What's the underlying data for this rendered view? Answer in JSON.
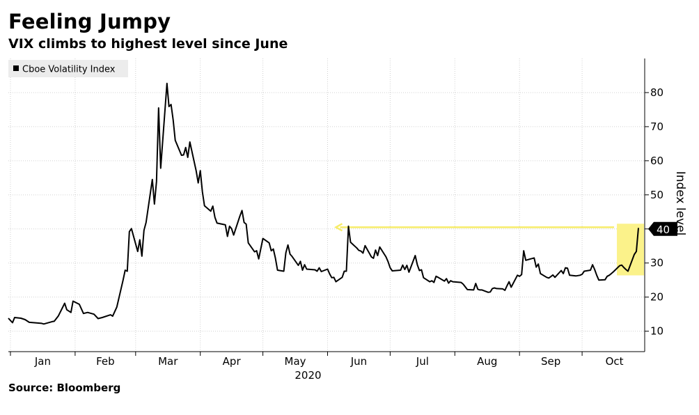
{
  "header": {
    "title": "Feeling Jumpy",
    "subtitle": "VIX climbs to highest level since June"
  },
  "footer": {
    "source": "Source: Bloomberg"
  },
  "chart_data": {
    "type": "line",
    "ylabel": "Index level",
    "year_label": "2020",
    "ylim": [
      4,
      90
    ],
    "yticks": [
      10,
      20,
      30,
      40,
      50,
      60,
      70,
      80
    ],
    "month_labels": [
      "Jan",
      "Feb",
      "Mar",
      "Apr",
      "May",
      "Jun",
      "Jul",
      "Aug",
      "Sep",
      "Oct"
    ],
    "grid": true,
    "legend": {
      "position": "top-left",
      "entries": [
        "Cboe Volatility Index"
      ]
    },
    "callout_value": "40",
    "highlight_start": "2020-10-19",
    "arrow_start_date": "2020-10-19",
    "arrow_end_date": "2020-06-01",
    "arrow_level": 40.5,
    "colors": {
      "line": "#000000",
      "highlight": "#fbf28a",
      "arrow": "#f7ec69",
      "grid": "#d0d0d0"
    },
    "series": [
      {
        "name": "Cboe Volatility Index",
        "points": [
          [
            "2019-12-31",
            13.8
          ],
          [
            "2020-01-02",
            12.5
          ],
          [
            "2020-01-03",
            14.0
          ],
          [
            "2020-01-06",
            13.8
          ],
          [
            "2020-01-08",
            13.4
          ],
          [
            "2020-01-10",
            12.6
          ],
          [
            "2020-01-14",
            12.4
          ],
          [
            "2020-01-16",
            12.3
          ],
          [
            "2020-01-17",
            12.1
          ],
          [
            "2020-01-21",
            12.8
          ],
          [
            "2020-01-22",
            12.9
          ],
          [
            "2020-01-24",
            14.5
          ],
          [
            "2020-01-27",
            18.2
          ],
          [
            "2020-01-28",
            16.3
          ],
          [
            "2020-01-30",
            15.5
          ],
          [
            "2020-01-31",
            18.8
          ],
          [
            "2020-02-03",
            17.9
          ],
          [
            "2020-02-05",
            15.2
          ],
          [
            "2020-02-07",
            15.5
          ],
          [
            "2020-02-10",
            15.0
          ],
          [
            "2020-02-12",
            13.7
          ],
          [
            "2020-02-14",
            14.0
          ],
          [
            "2020-02-18",
            14.8
          ],
          [
            "2020-02-19",
            14.4
          ],
          [
            "2020-02-21",
            17.1
          ],
          [
            "2020-02-24",
            25.0
          ],
          [
            "2020-02-25",
            27.9
          ],
          [
            "2020-02-26",
            27.6
          ],
          [
            "2020-02-27",
            39.2
          ],
          [
            "2020-02-28",
            40.1
          ],
          [
            "2020-03-02",
            33.4
          ],
          [
            "2020-03-03",
            36.8
          ],
          [
            "2020-03-04",
            32.0
          ],
          [
            "2020-03-05",
            39.6
          ],
          [
            "2020-03-06",
            41.9
          ],
          [
            "2020-03-09",
            54.5
          ],
          [
            "2020-03-10",
            47.3
          ],
          [
            "2020-03-11",
            53.9
          ],
          [
            "2020-03-12",
            75.5
          ],
          [
            "2020-03-13",
            57.8
          ],
          [
            "2020-03-16",
            82.7
          ],
          [
            "2020-03-17",
            75.9
          ],
          [
            "2020-03-18",
            76.5
          ],
          [
            "2020-03-19",
            72.0
          ],
          [
            "2020-03-20",
            66.0
          ],
          [
            "2020-03-23",
            61.6
          ],
          [
            "2020-03-24",
            61.7
          ],
          [
            "2020-03-25",
            63.9
          ],
          [
            "2020-03-26",
            61.0
          ],
          [
            "2020-03-27",
            65.5
          ],
          [
            "2020-03-30",
            57.1
          ],
          [
            "2020-03-31",
            53.5
          ],
          [
            "2020-04-01",
            57.1
          ],
          [
            "2020-04-02",
            50.9
          ],
          [
            "2020-04-03",
            46.8
          ],
          [
            "2020-04-06",
            45.2
          ],
          [
            "2020-04-07",
            46.7
          ],
          [
            "2020-04-08",
            43.4
          ],
          [
            "2020-04-09",
            41.7
          ],
          [
            "2020-04-13",
            41.2
          ],
          [
            "2020-04-14",
            37.8
          ],
          [
            "2020-04-15",
            40.8
          ],
          [
            "2020-04-16",
            40.1
          ],
          [
            "2020-04-17",
            38.2
          ],
          [
            "2020-04-20",
            43.8
          ],
          [
            "2020-04-21",
            45.4
          ],
          [
            "2020-04-22",
            41.9
          ],
          [
            "2020-04-23",
            41.4
          ],
          [
            "2020-04-24",
            35.9
          ],
          [
            "2020-04-27",
            33.3
          ],
          [
            "2020-04-28",
            33.6
          ],
          [
            "2020-04-29",
            31.2
          ],
          [
            "2020-04-30",
            34.2
          ],
          [
            "2020-05-01",
            37.2
          ],
          [
            "2020-05-04",
            35.9
          ],
          [
            "2020-05-05",
            33.6
          ],
          [
            "2020-05-06",
            34.1
          ],
          [
            "2020-05-07",
            31.4
          ],
          [
            "2020-05-08",
            27.9
          ],
          [
            "2020-05-11",
            27.6
          ],
          [
            "2020-05-12",
            33.0
          ],
          [
            "2020-05-13",
            35.3
          ],
          [
            "2020-05-14",
            32.6
          ],
          [
            "2020-05-15",
            31.9
          ],
          [
            "2020-05-18",
            29.3
          ],
          [
            "2020-05-19",
            30.5
          ],
          [
            "2020-05-20",
            27.9
          ],
          [
            "2020-05-21",
            29.5
          ],
          [
            "2020-05-22",
            28.2
          ],
          [
            "2020-05-26",
            28.0
          ],
          [
            "2020-05-27",
            27.6
          ],
          [
            "2020-05-28",
            28.6
          ],
          [
            "2020-05-29",
            27.5
          ],
          [
            "2020-06-01",
            28.2
          ],
          [
            "2020-06-02",
            26.8
          ],
          [
            "2020-06-03",
            25.7
          ],
          [
            "2020-06-04",
            25.8
          ],
          [
            "2020-06-05",
            24.5
          ],
          [
            "2020-06-08",
            25.8
          ],
          [
            "2020-06-09",
            27.6
          ],
          [
            "2020-06-10",
            27.6
          ],
          [
            "2020-06-11",
            40.8
          ],
          [
            "2020-06-12",
            36.1
          ],
          [
            "2020-06-15",
            34.4
          ],
          [
            "2020-06-16",
            33.7
          ],
          [
            "2020-06-17",
            33.5
          ],
          [
            "2020-06-18",
            32.9
          ],
          [
            "2020-06-19",
            35.1
          ],
          [
            "2020-06-22",
            31.8
          ],
          [
            "2020-06-23",
            31.4
          ],
          [
            "2020-06-24",
            33.8
          ],
          [
            "2020-06-25",
            32.2
          ],
          [
            "2020-06-26",
            34.7
          ],
          [
            "2020-06-29",
            31.8
          ],
          [
            "2020-06-30",
            30.4
          ],
          [
            "2020-07-01",
            28.6
          ],
          [
            "2020-07-02",
            27.7
          ],
          [
            "2020-07-06",
            27.9
          ],
          [
            "2020-07-07",
            29.4
          ],
          [
            "2020-07-08",
            28.1
          ],
          [
            "2020-07-09",
            29.3
          ],
          [
            "2020-07-10",
            27.3
          ],
          [
            "2020-07-13",
            32.2
          ],
          [
            "2020-07-14",
            29.5
          ],
          [
            "2020-07-15",
            27.8
          ],
          [
            "2020-07-16",
            28.0
          ],
          [
            "2020-07-17",
            25.7
          ],
          [
            "2020-07-20",
            24.5
          ],
          [
            "2020-07-21",
            24.8
          ],
          [
            "2020-07-22",
            24.3
          ],
          [
            "2020-07-23",
            26.1
          ],
          [
            "2020-07-24",
            25.8
          ],
          [
            "2020-07-27",
            24.7
          ],
          [
            "2020-07-28",
            25.4
          ],
          [
            "2020-07-29",
            24.1
          ],
          [
            "2020-07-30",
            24.8
          ],
          [
            "2020-07-31",
            24.5
          ],
          [
            "2020-08-04",
            24.3
          ],
          [
            "2020-08-05",
            23.8
          ],
          [
            "2020-08-06",
            23.0
          ],
          [
            "2020-08-07",
            22.2
          ],
          [
            "2020-08-10",
            22.1
          ],
          [
            "2020-08-11",
            24.0
          ],
          [
            "2020-08-12",
            22.3
          ],
          [
            "2020-08-13",
            22.1
          ],
          [
            "2020-08-14",
            22.1
          ],
          [
            "2020-08-17",
            21.4
          ],
          [
            "2020-08-18",
            21.5
          ],
          [
            "2020-08-19",
            22.5
          ],
          [
            "2020-08-20",
            22.7
          ],
          [
            "2020-08-21",
            22.5
          ],
          [
            "2020-08-24",
            22.4
          ],
          [
            "2020-08-25",
            22.0
          ],
          [
            "2020-08-26",
            23.3
          ],
          [
            "2020-08-27",
            24.5
          ],
          [
            "2020-08-28",
            22.9
          ],
          [
            "2020-08-31",
            26.4
          ],
          [
            "2020-09-01",
            26.1
          ],
          [
            "2020-09-02",
            26.6
          ],
          [
            "2020-09-03",
            33.6
          ],
          [
            "2020-09-04",
            30.8
          ],
          [
            "2020-09-08",
            31.5
          ],
          [
            "2020-09-09",
            28.8
          ],
          [
            "2020-09-10",
            29.7
          ],
          [
            "2020-09-11",
            26.9
          ],
          [
            "2020-09-14",
            25.8
          ],
          [
            "2020-09-15",
            25.6
          ],
          [
            "2020-09-16",
            26.0
          ],
          [
            "2020-09-17",
            26.5
          ],
          [
            "2020-09-18",
            25.8
          ],
          [
            "2020-09-21",
            27.8
          ],
          [
            "2020-09-22",
            26.9
          ],
          [
            "2020-09-23",
            28.6
          ],
          [
            "2020-09-24",
            28.5
          ],
          [
            "2020-09-25",
            26.4
          ],
          [
            "2020-09-28",
            26.2
          ],
          [
            "2020-09-29",
            26.3
          ],
          [
            "2020-09-30",
            26.4
          ],
          [
            "2020-10-01",
            26.7
          ],
          [
            "2020-10-02",
            27.6
          ],
          [
            "2020-10-05",
            27.9
          ],
          [
            "2020-10-06",
            29.5
          ],
          [
            "2020-10-07",
            28.1
          ],
          [
            "2020-10-08",
            26.4
          ],
          [
            "2020-10-09",
            25.0
          ],
          [
            "2020-10-12",
            25.1
          ],
          [
            "2020-10-13",
            26.1
          ],
          [
            "2020-10-14",
            26.4
          ],
          [
            "2020-10-15",
            26.9
          ],
          [
            "2020-10-16",
            27.4
          ],
          [
            "2020-10-19",
            29.2
          ],
          [
            "2020-10-20",
            29.4
          ],
          [
            "2020-10-21",
            28.7
          ],
          [
            "2020-10-22",
            28.1
          ],
          [
            "2020-10-23",
            27.6
          ],
          [
            "2020-10-26",
            32.5
          ],
          [
            "2020-10-27",
            33.4
          ],
          [
            "2020-10-28",
            40.3
          ]
        ]
      }
    ]
  }
}
